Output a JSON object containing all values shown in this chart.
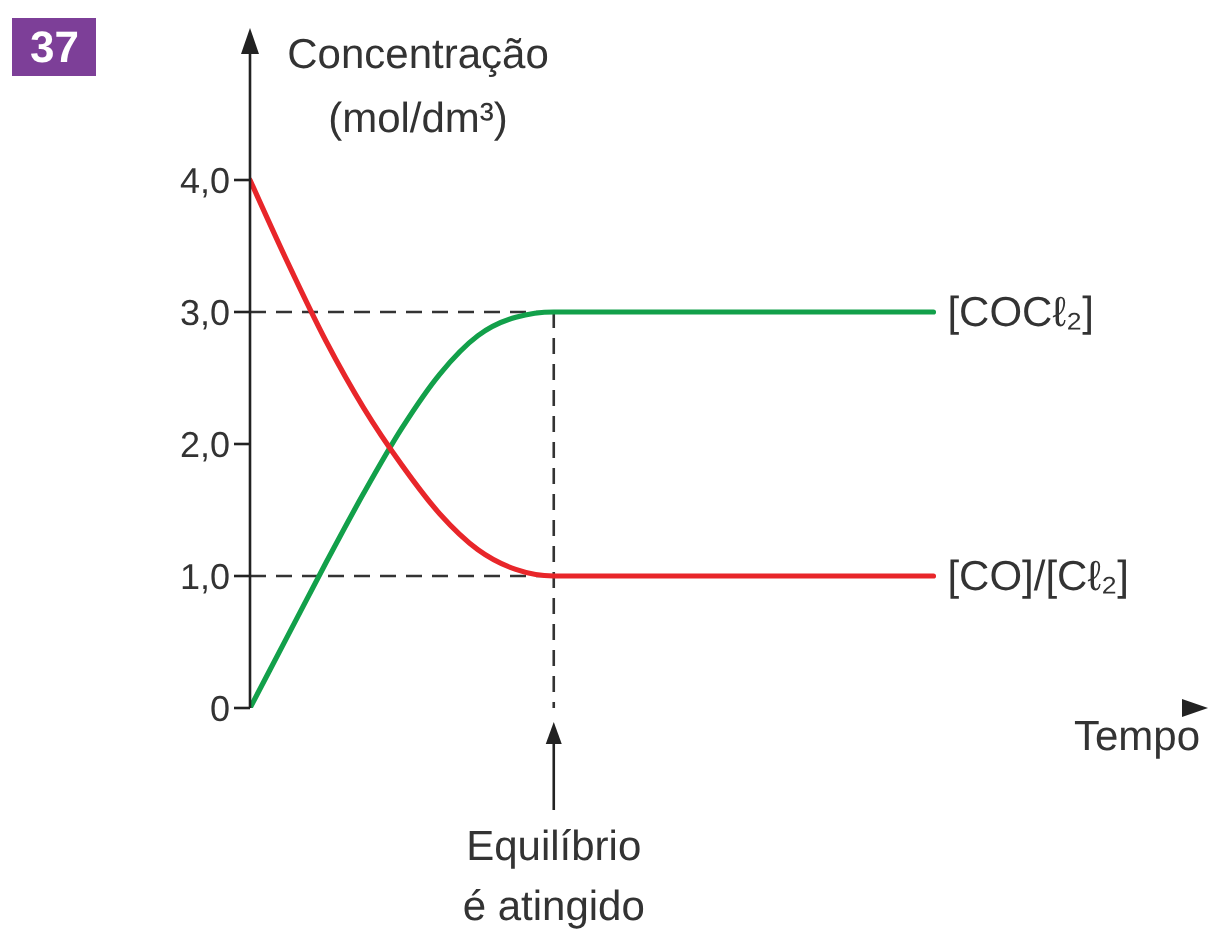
{
  "chart_data": {
    "type": "line",
    "annotations": [
      "37",
      "Equilíbrio é atingido"
    ],
    "ylabel": "Concentração (mol/dm³)",
    "xlabel": "Tempo",
    "categories": [
      null,
      null,
      null,
      null,
      null,
      null,
      null,
      null,
      null,
      null,
      null,
      null,
      null,
      null,
      null,
      null,
      null,
      null,
      null
    ],
    "series": [
      {
        "name": "[COCℓ₂]",
        "color": "#12a04a",
        "values": [
          0,
          0.55,
          1.1,
          1.63,
          2.12,
          2.53,
          2.82,
          2.96,
          3,
          3,
          3,
          3,
          3,
          3,
          3,
          3,
          3,
          3,
          3
        ]
      },
      {
        "name": "[CO]/[Cℓ₂]",
        "color": "#e8262a",
        "values": [
          4,
          3.37,
          2.78,
          2.27,
          1.84,
          1.47,
          1.2,
          1.05,
          1,
          1,
          1,
          1,
          1,
          1,
          1,
          1,
          1,
          1,
          1
        ]
      }
    ],
    "ylim": [
      0,
      5
    ],
    "yticks": [
      0,
      {
        "value": 1,
        "label": "1,0"
      },
      {
        "value": 2,
        "label": "2,0"
      },
      {
        "value": 3,
        "label": "3,0"
      },
      {
        "value": 4,
        "label": "4,0"
      }
    ],
    "tick_labels": "y",
    "marker": "none",
    "line_style": "solid",
    "ref_lines": [
      {
        "axis": "y",
        "value": 3,
        "line_style": "dashed",
        "color": "#333333"
      },
      {
        "axis": "y",
        "value": 1,
        "line_style": "dashed",
        "color": "#333333"
      }
    ]
  }
}
